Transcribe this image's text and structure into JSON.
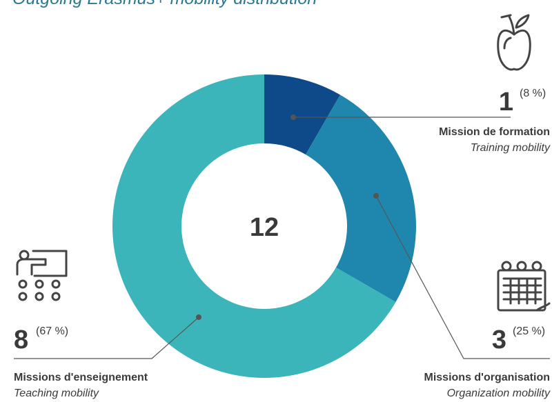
{
  "chart_data": {
    "type": "donut",
    "title": "Outgoing Erasmus+ mobility distribution",
    "total": 12,
    "categories": [
      "Mission de formation",
      "Missions d'organisation",
      "Missions d'enseignement"
    ],
    "categories_en": [
      "Training mobility",
      "Organization mobility",
      "Teaching mobility"
    ],
    "values": [
      1,
      3,
      8
    ],
    "percent_labels": [
      "(8 %)",
      "(25 %)",
      "(67 %)"
    ],
    "colors": [
      "#0e4a8a",
      "#1f87ad",
      "#3bb5b9"
    ]
  }
}
